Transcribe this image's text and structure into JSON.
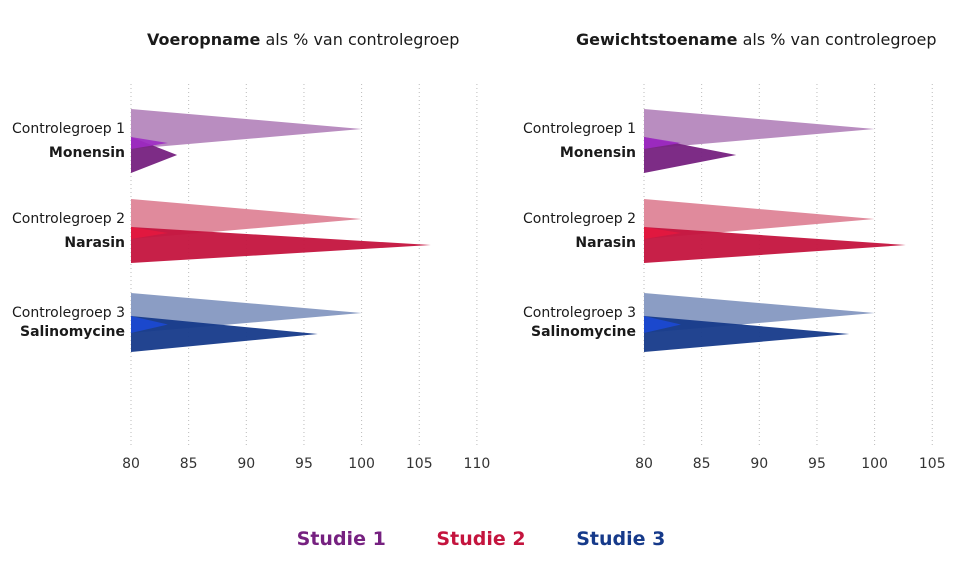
{
  "colors": {
    "studie1_light": "#b98dc0",
    "studie1_dark": "#762180",
    "studie1_mid": "#9e2bc4",
    "studie2_light": "#e08a9c",
    "studie2_dark": "#c4143e",
    "studie2_mid": "#e3183f",
    "studie3_light": "#8b9dc4",
    "studie3_dark": "#163a8a",
    "studie3_mid": "#1c49d4",
    "grid": "#bbbbbb",
    "axis_text": "#333333"
  },
  "legend": [
    {
      "label": "Studie 1",
      "color": "#762180"
    },
    {
      "label": "Studie 2",
      "color": "#c4143e"
    },
    {
      "label": "Studie 3",
      "color": "#163a8a"
    }
  ],
  "chart_data": [
    {
      "type": "bar",
      "title_bold": "Voeropname",
      "title_rest": " als % van controlegroep",
      "xlim": [
        80,
        110
      ],
      "xticks": [
        80,
        85,
        90,
        95,
        100,
        105,
        110
      ],
      "groups": [
        {
          "study": "Studie 1",
          "control_label": "Controlegroep 1",
          "control_value": 100,
          "treatment_label": "Monensin",
          "treatment_value": 84
        },
        {
          "study": "Studie 2",
          "control_label": "Controlegroep 2",
          "control_value": 100,
          "treatment_label": "Narasin",
          "treatment_value": 106
        },
        {
          "study": "Studie 3",
          "control_label": "Controlegroep 3",
          "control_value": 100,
          "treatment_label": "Salinomycine",
          "treatment_value": 96.2
        }
      ]
    },
    {
      "type": "bar",
      "title_bold": "Gewichtstoename",
      "title_rest": " als % van controlegroep",
      "xlim": [
        80,
        105
      ],
      "xticks": [
        80,
        85,
        90,
        95,
        100,
        105
      ],
      "groups": [
        {
          "study": "Studie 1",
          "control_label": "Controlegroep 1",
          "control_value": 100,
          "treatment_label": "Monensin",
          "treatment_value": 88
        },
        {
          "study": "Studie 2",
          "control_label": "Controlegroep 2",
          "control_value": 100,
          "treatment_label": "Narasin",
          "treatment_value": 102.7
        },
        {
          "study": "Studie 3",
          "control_label": "Controlegroep 3",
          "control_value": 100,
          "treatment_label": "Salinomycine",
          "treatment_value": 97.8
        }
      ]
    }
  ]
}
